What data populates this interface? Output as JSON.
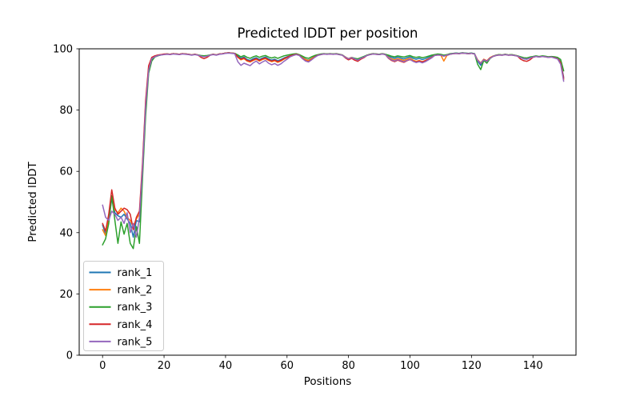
{
  "figure": {
    "background": "#ffffff",
    "spine_color": "#000000"
  },
  "chart_data": {
    "type": "line",
    "title": "Predicted lDDT per position",
    "xlabel": "Positions",
    "ylabel": "Predicted lDDT",
    "xlim": [
      -7.6,
      154.0
    ],
    "ylim": [
      0,
      100
    ],
    "xticks": [
      0,
      20,
      40,
      60,
      80,
      100,
      120,
      140
    ],
    "yticks": [
      0,
      20,
      40,
      60,
      80,
      100
    ],
    "grid": false,
    "legend_position": "lower left",
    "legend_border_color": "#cccccc",
    "x_start": 0,
    "x_step": 1,
    "series": [
      {
        "name": "rank_1",
        "color": "#1f77b4",
        "values": [
          42.5,
          39.5,
          44,
          51,
          46.5,
          45.5,
          45,
          46,
          44.5,
          43,
          38.5,
          44,
          43.5,
          60,
          80,
          93,
          96.5,
          97.5,
          97.8,
          98,
          98.2,
          98.3,
          98.2,
          98.4,
          98.3,
          98.2,
          98.4,
          98.3,
          98.2,
          98,
          98.2,
          98,
          97.7,
          97.5,
          97.7,
          98,
          98.2,
          98,
          98.3,
          98.4,
          98.6,
          98.7,
          98.6,
          98.5,
          97.6,
          96.9,
          97.3,
          96.5,
          96.2,
          96.8,
          97.1,
          96.5,
          97,
          97.3,
          96.7,
          96.3,
          96.6,
          96.1,
          96.5,
          97,
          97.4,
          97.7,
          98,
          98.3,
          98,
          97.2,
          96.6,
          96.3,
          96.9,
          97.5,
          98,
          98.2,
          98.4,
          98.3,
          98.4,
          98.3,
          98.4,
          98.2,
          98,
          97.3,
          96.8,
          97.2,
          96.9,
          96.5,
          97,
          97.4,
          97.9,
          98.2,
          98.4,
          98.3,
          98.2,
          98.4,
          98.2,
          97.6,
          97.2,
          96.9,
          97.3,
          97,
          96.7,
          97.1,
          97.4,
          96.9,
          96.6,
          96.9,
          96.5,
          96.8,
          97.2,
          97.6,
          98,
          98.2,
          98.1,
          97.7,
          98,
          98.3,
          98.5,
          98.6,
          98.5,
          98.7,
          98.6,
          98.5,
          98.6,
          98.4,
          96,
          94.6,
          96.5,
          96,
          97,
          97.6,
          97.9,
          98.1,
          98,
          98.2,
          98,
          98.1,
          97.9,
          97.7,
          97.1,
          96.7,
          96.6,
          97,
          97.4,
          97.6,
          97.4,
          97.6,
          97.5,
          97.3,
          97.4,
          97.2,
          97,
          95.8,
          90.7
        ]
      },
      {
        "name": "rank_2",
        "color": "#ff7f0e",
        "values": [
          41,
          39,
          44.5,
          52,
          47.5,
          46.5,
          48,
          47,
          45,
          44,
          42,
          44.5,
          46,
          62,
          82,
          94,
          97,
          97.6,
          97.9,
          98.1,
          98.2,
          98.3,
          98.2,
          98.4,
          98.3,
          98.2,
          98.4,
          98.3,
          98.2,
          98,
          98.2,
          98,
          97.7,
          97.5,
          97.7,
          98,
          98.2,
          98,
          98.3,
          98.4,
          98.6,
          98.7,
          98.6,
          98.5,
          97.2,
          96.4,
          96.8,
          96,
          95.7,
          96.2,
          96.6,
          96,
          96.5,
          96.8,
          96.2,
          95.8,
          96.1,
          95.6,
          96,
          96.6,
          97.1,
          97.6,
          98,
          98.2,
          98,
          97.1,
          96.5,
          96.2,
          96.8,
          97.5,
          98,
          98.2,
          98.4,
          98.3,
          98.4,
          98.3,
          98.4,
          98.2,
          98,
          97.3,
          96.8,
          97.2,
          96.8,
          96.4,
          97,
          97.4,
          97.9,
          98.2,
          98.4,
          98.3,
          98.2,
          98.4,
          98.2,
          97.2,
          96.7,
          96.4,
          96.8,
          96.5,
          96.2,
          96.6,
          96.9,
          96.3,
          95.9,
          96.2,
          95.8,
          96.2,
          96.7,
          97.2,
          97.9,
          98.1,
          98,
          96,
          97.8,
          98.2,
          98.4,
          98.5,
          98.4,
          98.6,
          98.5,
          98.4,
          98.5,
          98.3,
          96.4,
          95.4,
          96.6,
          96.1,
          97.1,
          97.6,
          97.9,
          98.1,
          98,
          98.2,
          98,
          98.1,
          97.9,
          97.7,
          97.2,
          96.9,
          96.7,
          97.1,
          97.4,
          97.6,
          97.4,
          97.6,
          97.5,
          97.3,
          97.4,
          97.2,
          96.9,
          95.5,
          90
        ]
      },
      {
        "name": "rank_3",
        "color": "#2ca02c",
        "values": [
          36,
          38,
          43,
          52,
          44,
          36.5,
          43.5,
          39.5,
          43,
          36.5,
          34.8,
          42,
          36.5,
          58,
          78,
          92,
          96,
          97.3,
          97.7,
          98,
          98.2,
          98.3,
          98.2,
          98.4,
          98.3,
          98.2,
          98.4,
          98.3,
          98.2,
          98,
          98.2,
          98,
          97.8,
          97.7,
          97.8,
          98,
          98.2,
          98,
          98.3,
          98.4,
          98.6,
          98.7,
          98.6,
          98.5,
          98,
          97.4,
          97.8,
          97.2,
          96.9,
          97.4,
          97.7,
          97.2,
          97.6,
          97.8,
          97.3,
          97,
          97.3,
          96.9,
          97.3,
          97.7,
          97.9,
          98.1,
          98.3,
          98.4,
          98.1,
          97.6,
          97.1,
          96.9,
          97.4,
          97.8,
          98.1,
          98.3,
          98.4,
          98.3,
          98.4,
          98.3,
          98.4,
          98.2,
          98,
          97.2,
          96.5,
          97.1,
          96.9,
          96.7,
          97.1,
          97.5,
          97.9,
          98.2,
          98.4,
          98.3,
          98.2,
          98.4,
          98.2,
          97.9,
          97.6,
          97.4,
          97.7,
          97.5,
          97.3,
          97.6,
          97.8,
          97.4,
          97.2,
          97.4,
          97.1,
          97.3,
          97.6,
          97.9,
          98.1,
          98.3,
          98.2,
          97.9,
          98.1,
          98.4,
          98.5,
          98.6,
          98.5,
          98.7,
          98.6,
          98.5,
          98.6,
          98.4,
          95,
          93.2,
          96.2,
          95.3,
          96.8,
          97.5,
          97.9,
          98.1,
          98,
          98.2,
          98,
          98.1,
          97.9,
          97.7,
          97.4,
          97.1,
          97,
          97.3,
          97.5,
          97.7,
          97.5,
          97.7,
          97.6,
          97.4,
          97.5,
          97.4,
          97.2,
          96.5,
          92.8
        ]
      },
      {
        "name": "rank_4",
        "color": "#d62728",
        "values": [
          43,
          40.5,
          46,
          54,
          48,
          46,
          47,
          48,
          47.5,
          46,
          41,
          45,
          47,
          63,
          83,
          94.5,
          97.2,
          97.7,
          98,
          98.1,
          98.3,
          98.3,
          98.2,
          98.4,
          98.3,
          98.2,
          98.4,
          98.3,
          98.2,
          98,
          98.2,
          98,
          97.2,
          96.8,
          97.2,
          97.9,
          98.2,
          98,
          98.3,
          98.4,
          98.6,
          98.7,
          98.6,
          98.5,
          97.3,
          96.6,
          97,
          96.2,
          95.9,
          96.4,
          96.8,
          96.2,
          96.7,
          97,
          96.4,
          96,
          96.3,
          95.8,
          96.2,
          96.8,
          97.2,
          97.7,
          98,
          98.2,
          97.9,
          96.9,
          96.1,
          95.8,
          96.5,
          97.3,
          97.9,
          98.1,
          98.3,
          98.2,
          98.3,
          98.2,
          98.3,
          98.1,
          97.9,
          97,
          96.4,
          96.9,
          96.3,
          95.9,
          96.6,
          97.1,
          97.8,
          98.1,
          98.3,
          98.2,
          98.1,
          98.3,
          98.1,
          96.9,
          96.2,
          95.8,
          96.3,
          95.9,
          95.6,
          96.1,
          96.5,
          96,
          95.7,
          96,
          95.7,
          96.1,
          96.6,
          97.1,
          97.8,
          98,
          97.9,
          97.6,
          97.9,
          98.2,
          98.4,
          98.5,
          98.4,
          98.6,
          98.5,
          98.4,
          98.5,
          98.3,
          96.3,
          95.2,
          96.5,
          96,
          97,
          97.5,
          97.8,
          98,
          97.9,
          98.1,
          97.9,
          98,
          97.8,
          97.6,
          96.6,
          96.1,
          95.9,
          96.4,
          97.2,
          97.5,
          97.3,
          97.5,
          97.4,
          97.2,
          97.3,
          97.1,
          96.8,
          95.4,
          90.3
        ]
      },
      {
        "name": "rank_5",
        "color": "#9467bd",
        "values": [
          49,
          45,
          44,
          47,
          46,
          44,
          45,
          43,
          46.5,
          40,
          43,
          38.5,
          45,
          61,
          81,
          93,
          96.8,
          97.4,
          97.8,
          98,
          98.1,
          98.2,
          98.1,
          98.3,
          98.2,
          98.1,
          98.3,
          98.2,
          98.1,
          97.9,
          98.1,
          97.9,
          97.6,
          97.4,
          97.6,
          97.9,
          98.1,
          97.9,
          98.2,
          98.3,
          98.5,
          98.6,
          98.5,
          98.4,
          95.8,
          94.6,
          95.3,
          94.9,
          94.5,
          95.4,
          96,
          95.1,
          95.7,
          96.2,
          95.3,
          94.8,
          95.2,
          94.6,
          95.1,
          95.9,
          96.6,
          97.4,
          97.8,
          98.1,
          97.8,
          96.8,
          96,
          95.7,
          96.4,
          97.2,
          97.8,
          98.1,
          98.3,
          98.2,
          98.3,
          98.2,
          98.3,
          98.1,
          97.9,
          97.2,
          96.7,
          97.1,
          96.7,
          96.3,
          96.9,
          97.3,
          97.8,
          98.1,
          98.3,
          98.2,
          98.1,
          98.3,
          98.1,
          97,
          96.4,
          96,
          96.5,
          96.1,
          95.8,
          96.2,
          96.6,
          95.9,
          95.5,
          95.8,
          95.4,
          95.8,
          96.4,
          97,
          97.8,
          98,
          97.9,
          97.6,
          97.9,
          98.2,
          98.4,
          98.5,
          98.4,
          98.6,
          98.5,
          98.4,
          98.5,
          98.3,
          96.2,
          95.3,
          96.4,
          95.9,
          96.9,
          97.5,
          97.8,
          98,
          97.9,
          98.1,
          97.9,
          98,
          97.8,
          97.6,
          97.1,
          96.8,
          96.6,
          97,
          97.3,
          97.5,
          97.3,
          97.5,
          97.4,
          97.2,
          97.3,
          97,
          96.7,
          95,
          89.4
        ]
      }
    ]
  }
}
